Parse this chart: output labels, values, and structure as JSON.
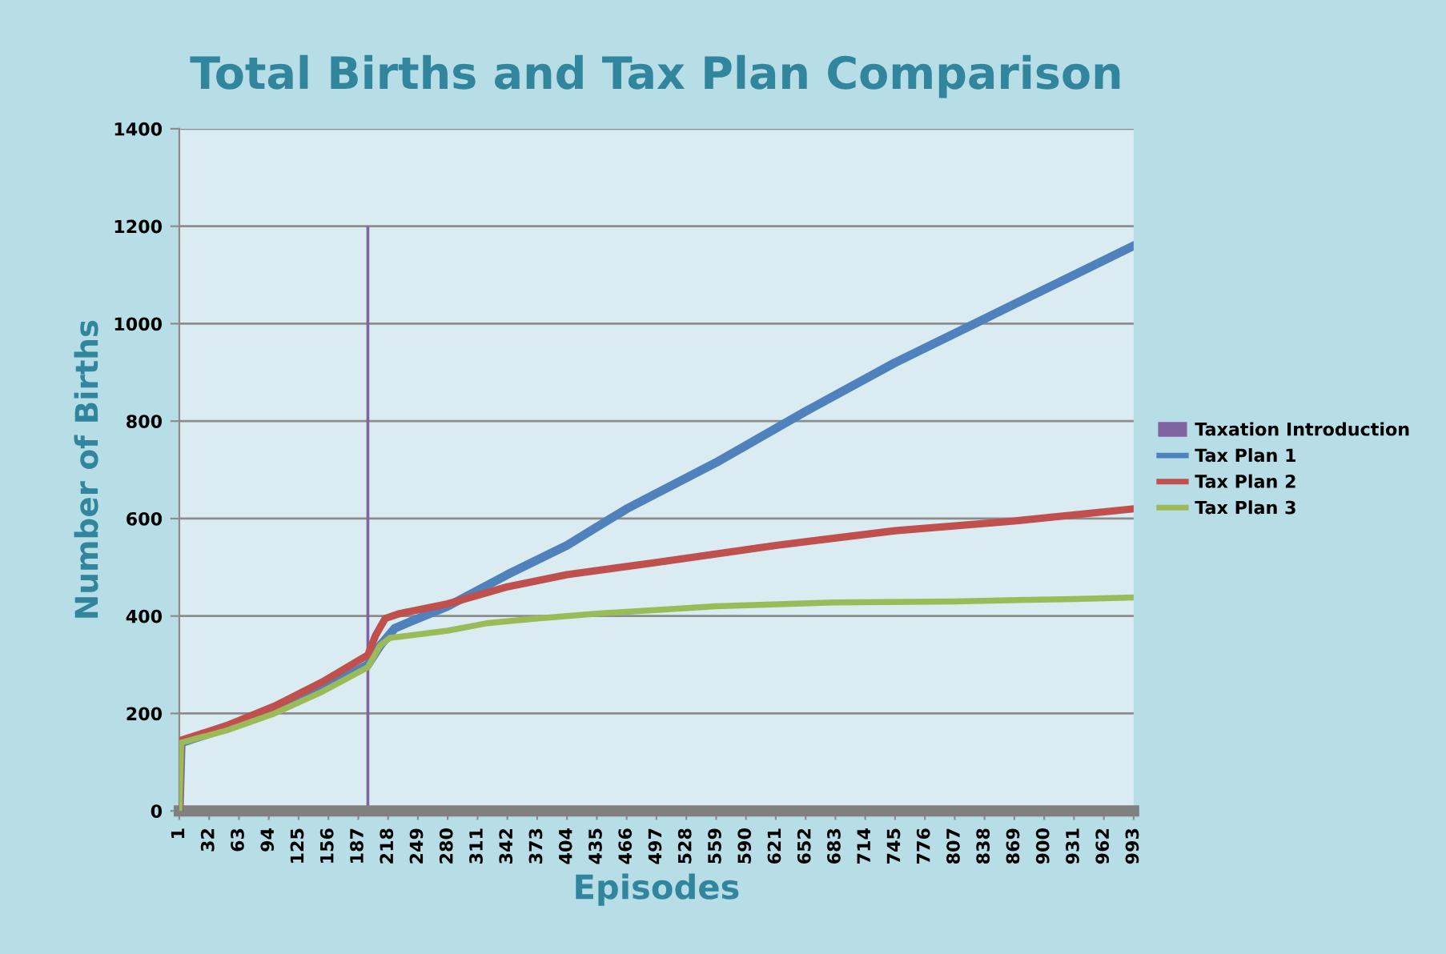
{
  "chart_data": {
    "type": "line",
    "title": "Total Births and Tax Plan Comparison",
    "xlabel": "Episodes",
    "ylabel": "Number of Births",
    "xlim": [
      1,
      993
    ],
    "xticks": [
      1,
      32,
      63,
      94,
      125,
      156,
      187,
      218,
      249,
      280,
      311,
      342,
      373,
      404,
      435,
      466,
      497,
      528,
      559,
      590,
      621,
      652,
      683,
      714,
      745,
      776,
      807,
      838,
      869,
      900,
      931,
      962,
      993
    ],
    "ylim": [
      0,
      1400
    ],
    "yticks": [
      0,
      200,
      400,
      600,
      800,
      1000,
      1200,
      1400
    ],
    "grid": "y",
    "legend": "right",
    "marker": "none",
    "line_style": "solid",
    "series": [
      {
        "name": "Taxation Introduction",
        "type": "bar",
        "color": "#8064a2",
        "x": [
          197
        ],
        "values": [
          1200
        ]
      },
      {
        "name": "Tax Plan 1",
        "color": "#4f81bd",
        "x": [
          1,
          3,
          50,
          100,
          150,
          197,
          210,
          225,
          280,
          342,
          404,
          466,
          559,
          652,
          745,
          838,
          931,
          993
        ],
        "values": [
          0,
          140,
          170,
          205,
          250,
          300,
          340,
          375,
          420,
          485,
          545,
          620,
          715,
          820,
          920,
          1010,
          1100,
          1160
        ]
      },
      {
        "name": "Tax Plan 2",
        "color": "#c0504d",
        "x": [
          1,
          3,
          50,
          100,
          150,
          197,
          205,
          215,
          230,
          280,
          342,
          404,
          497,
          621,
          745,
          869,
          993
        ],
        "values": [
          0,
          145,
          175,
          215,
          265,
          320,
          360,
          395,
          405,
          425,
          460,
          485,
          510,
          545,
          575,
          595,
          620
        ]
      },
      {
        "name": "Tax Plan 3",
        "color": "#9bbb59",
        "x": [
          1,
          3,
          50,
          100,
          150,
          197,
          210,
          220,
          280,
          320,
          373,
          435,
          559,
          683,
          807,
          931,
          993
        ],
        "values": [
          0,
          140,
          165,
          200,
          245,
          295,
          340,
          355,
          370,
          385,
          395,
          405,
          420,
          428,
          430,
          435,
          438
        ]
      }
    ]
  }
}
